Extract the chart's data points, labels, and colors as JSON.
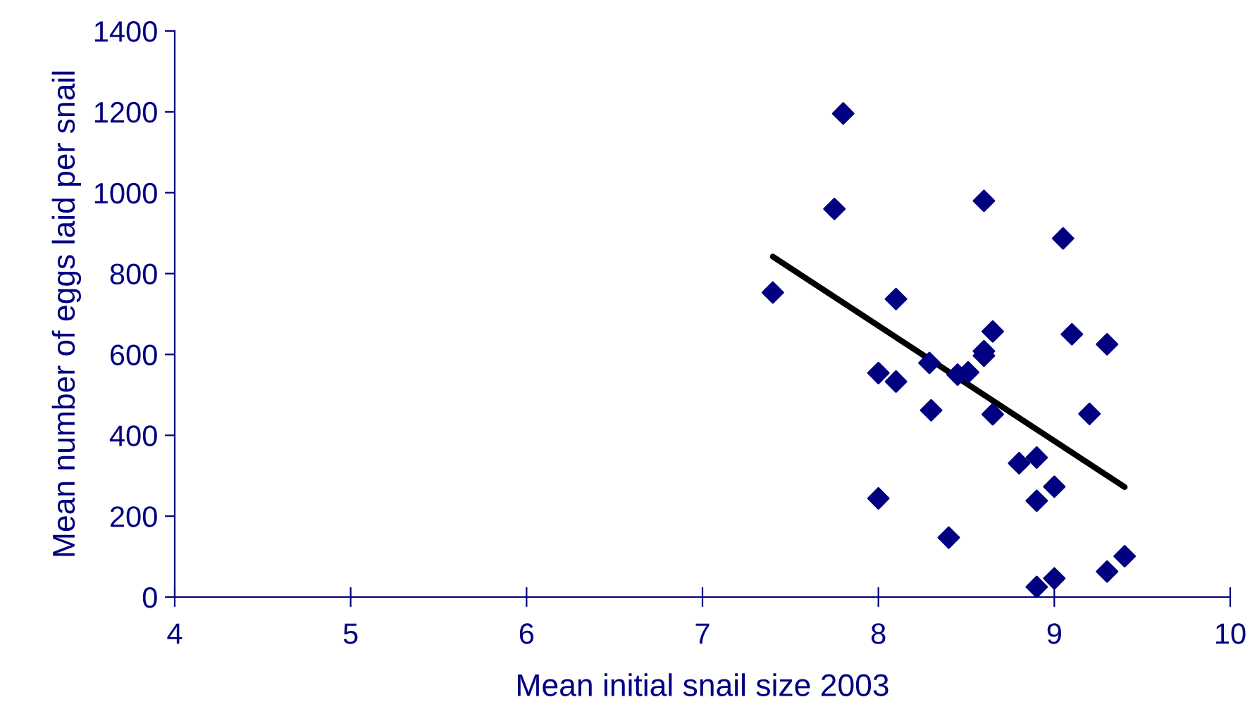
{
  "chart_data": {
    "type": "scatter",
    "xlabel": "Mean initial snail size 2003",
    "ylabel": "Mean number of eggs laid per snail",
    "xlim": [
      4,
      10
    ],
    "xticks": [
      4,
      5,
      6,
      7,
      8,
      9,
      10
    ],
    "ylim": [
      0,
      1400
    ],
    "yticks": [
      0,
      200,
      400,
      600,
      800,
      1000,
      1200,
      1400
    ],
    "grid": false,
    "series": [
      {
        "color": "#000080",
        "marker": "diamond",
        "x": [
          7.8,
          7.75,
          8.6,
          9.05,
          7.4,
          8.1,
          8.65,
          9.1,
          9.3,
          8.6,
          8.6,
          8.29,
          8.0,
          8.1,
          8.45,
          8.51,
          8.3,
          8.65,
          9.2,
          8.8,
          8.9,
          9.0,
          8.9,
          8.0,
          8.4,
          9.4,
          9.3,
          9.0,
          8.9
        ],
        "values": [
          1196,
          960,
          980,
          887,
          753,
          737,
          657,
          650,
          625,
          608,
          597,
          579,
          554,
          533,
          550,
          556,
          462,
          452,
          453,
          331,
          345,
          273,
          238,
          244,
          147,
          101,
          63,
          46,
          25
        ]
      },
      {
        "type": "line",
        "color": "#000000",
        "marker": "none",
        "line_style": "solid",
        "x": [
          7.4,
          9.4
        ],
        "values": [
          842,
          272
        ]
      }
    ]
  }
}
